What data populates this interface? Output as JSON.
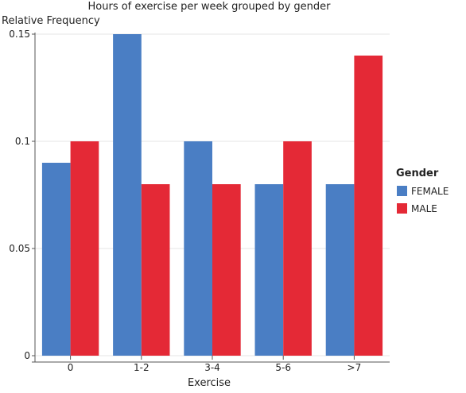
{
  "chart_data": {
    "type": "bar",
    "title": "Hours of exercise per week grouped by gender",
    "xlabel": "Exercise",
    "ylabel": "Relative Frequency",
    "categories": [
      "0",
      "1-2",
      "3-4",
      "5-6",
      ">7"
    ],
    "series": [
      {
        "name": "FEMALE",
        "color": "#4a7ec4",
        "values": [
          0.09,
          0.15,
          0.1,
          0.08,
          0.08
        ]
      },
      {
        "name": "MALE",
        "color": "#e42936",
        "values": [
          0.1,
          0.08,
          0.08,
          0.1,
          0.14
        ]
      }
    ],
    "ylim": [
      0,
      0.15
    ],
    "yticks": [
      0,
      0.05,
      0.1,
      0.15
    ],
    "ytick_labels": [
      "0",
      "0.05",
      "0.1",
      "0.15"
    ],
    "grid": true,
    "legend": {
      "title": "Gender",
      "placement": "right"
    }
  }
}
